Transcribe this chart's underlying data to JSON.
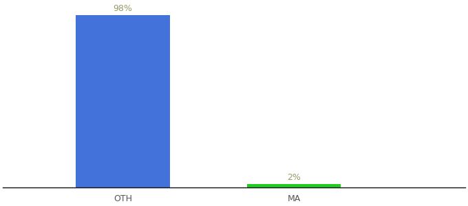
{
  "categories": [
    "OTH",
    "MA"
  ],
  "values": [
    98,
    2
  ],
  "bar_colors": [
    "#4472db",
    "#22cc22"
  ],
  "value_labels": [
    "98%",
    "2%"
  ],
  "ylim": [
    0,
    105
  ],
  "background_color": "#ffffff",
  "label_color": "#999966",
  "label_fontsize": 9,
  "tick_fontsize": 9,
  "bar_width": 0.55,
  "xlim": [
    -0.2,
    2.5
  ]
}
